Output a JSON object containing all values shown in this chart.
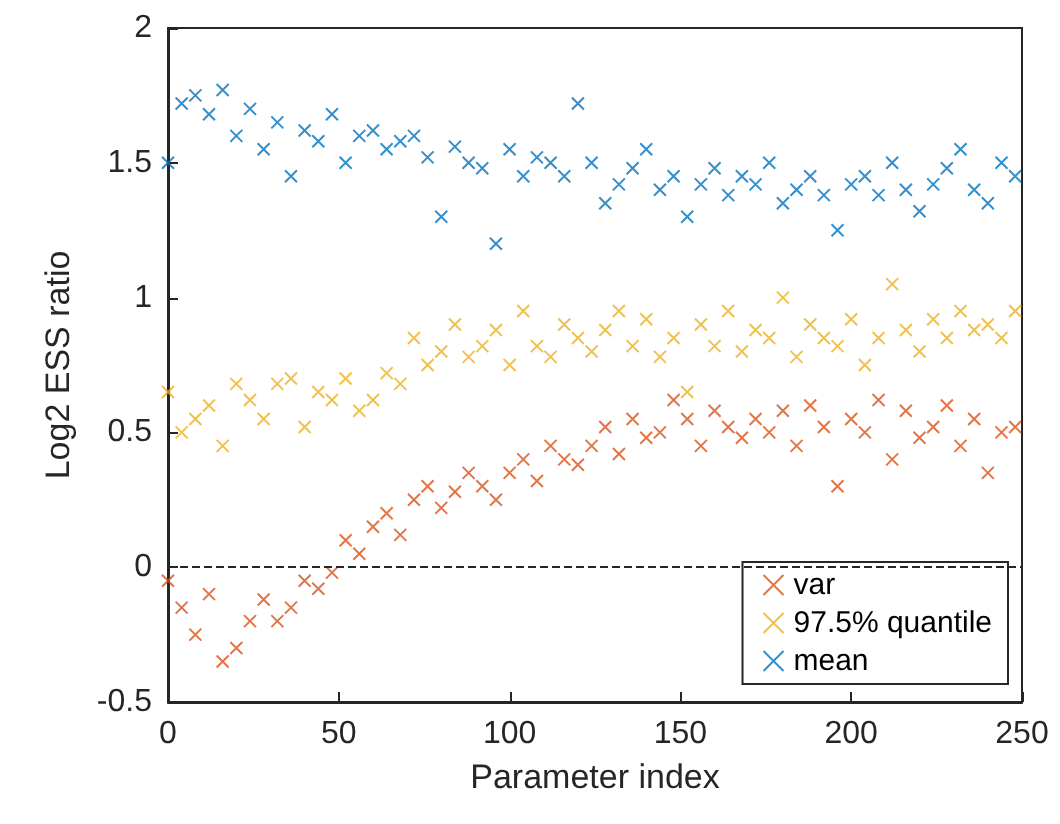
{
  "chart_data": {
    "type": "scatter",
    "xlabel": "Parameter index",
    "ylabel": "Log2 ESS ratio",
    "x": [
      0,
      4,
      8,
      12,
      16,
      20,
      24,
      28,
      32,
      36,
      40,
      44,
      48,
      52,
      56,
      60,
      64,
      68,
      72,
      76,
      80,
      84,
      88,
      92,
      96,
      100,
      104,
      108,
      112,
      116,
      120,
      124,
      128,
      132,
      136,
      140,
      144,
      148,
      152,
      156,
      160,
      164,
      168,
      172,
      176,
      180,
      184,
      188,
      192,
      196,
      200,
      204,
      208,
      212,
      216,
      220,
      224,
      228,
      232,
      236,
      240,
      244,
      248
    ],
    "series": [
      {
        "name": "var",
        "color": "#d95319",
        "values": [
          -0.05,
          -0.15,
          -0.25,
          -0.1,
          -0.35,
          -0.3,
          -0.2,
          -0.12,
          -0.2,
          -0.15,
          -0.05,
          -0.08,
          -0.02,
          0.1,
          0.05,
          0.15,
          0.2,
          0.12,
          0.25,
          0.3,
          0.22,
          0.28,
          0.35,
          0.3,
          0.25,
          0.35,
          0.4,
          0.32,
          0.45,
          0.4,
          0.38,
          0.45,
          0.52,
          0.42,
          0.55,
          0.48,
          0.5,
          0.62,
          0.55,
          0.45,
          0.58,
          0.52,
          0.48,
          0.55,
          0.5,
          0.58,
          0.45,
          0.6,
          0.52,
          0.3,
          0.55,
          0.5,
          0.62,
          0.4,
          0.58,
          0.48,
          0.52,
          0.6,
          0.45,
          0.55,
          0.35,
          0.5,
          0.52
        ]
      },
      {
        "name": "97.5% quantile",
        "color": "#edb120",
        "values": [
          0.65,
          0.5,
          0.55,
          0.6,
          0.45,
          0.68,
          0.62,
          0.55,
          0.68,
          0.7,
          0.52,
          0.65,
          0.62,
          0.7,
          0.58,
          0.62,
          0.72,
          0.68,
          0.85,
          0.75,
          0.8,
          0.9,
          0.78,
          0.82,
          0.88,
          0.75,
          0.95,
          0.82,
          0.78,
          0.9,
          0.85,
          0.8,
          0.88,
          0.95,
          0.82,
          0.92,
          0.78,
          0.85,
          0.65,
          0.9,
          0.82,
          0.95,
          0.8,
          0.88,
          0.85,
          1.0,
          0.78,
          0.9,
          0.85,
          0.82,
          0.92,
          0.75,
          0.85,
          1.05,
          0.88,
          0.8,
          0.92,
          0.85,
          0.95,
          0.88,
          0.9,
          0.85,
          0.95
        ]
      },
      {
        "name": "mean",
        "color": "#0072bd",
        "values": [
          1.5,
          1.72,
          1.75,
          1.68,
          1.77,
          1.6,
          1.7,
          1.55,
          1.65,
          1.45,
          1.62,
          1.58,
          1.68,
          1.5,
          1.6,
          1.62,
          1.55,
          1.58,
          1.6,
          1.52,
          1.3,
          1.56,
          1.5,
          1.48,
          1.2,
          1.55,
          1.45,
          1.52,
          1.5,
          1.45,
          1.72,
          1.5,
          1.35,
          1.42,
          1.48,
          1.55,
          1.4,
          1.45,
          1.3,
          1.42,
          1.48,
          1.38,
          1.45,
          1.42,
          1.5,
          1.35,
          1.4,
          1.45,
          1.38,
          1.25,
          1.42,
          1.45,
          1.38,
          1.5,
          1.4,
          1.32,
          1.42,
          1.48,
          1.55,
          1.4,
          1.35,
          1.5,
          1.45
        ]
      }
    ],
    "xlim": [
      0,
      250
    ],
    "xticks": [
      0,
      50,
      100,
      150,
      200,
      250
    ],
    "ylim": [
      -0.5,
      2
    ],
    "yticks": [
      -0.5,
      0,
      0.5,
      1,
      1.5,
      2
    ],
    "ref_lines": [
      {
        "axis": "y",
        "value": 0,
        "label": null,
        "color": "#262626",
        "line_style": "dashed"
      }
    ],
    "marker": "cross",
    "grid": false,
    "legend": "bottom right"
  }
}
